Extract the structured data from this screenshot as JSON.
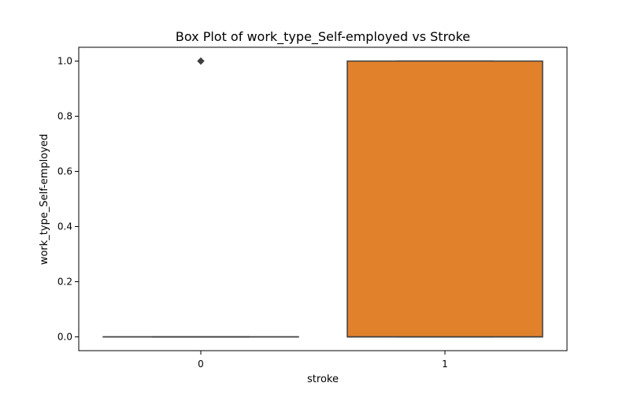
{
  "chart_data": {
    "type": "box",
    "title": "Box Plot of work_type_Self-employed vs Stroke",
    "xlabel": "stroke",
    "ylabel": "work_type_Self-employed",
    "categories": [
      "0",
      "1"
    ],
    "ylim": [
      -0.05,
      1.05
    ],
    "yticks": [
      "0.0",
      "0.2",
      "0.4",
      "0.6",
      "0.8",
      "1.0"
    ],
    "grid": false,
    "legend": "none",
    "boxes": [
      {
        "category": "0",
        "min": 0.0,
        "q1": 0.0,
        "median": 0.0,
        "q3": 0.0,
        "max": 0.0,
        "outliers": [
          1.0
        ],
        "color": "#3274a1"
      },
      {
        "category": "1",
        "min": 0.0,
        "q1": 0.0,
        "median": 0.0,
        "q3": 1.0,
        "max": 1.0,
        "outliers": [],
        "color": "#e1812c"
      }
    ]
  }
}
